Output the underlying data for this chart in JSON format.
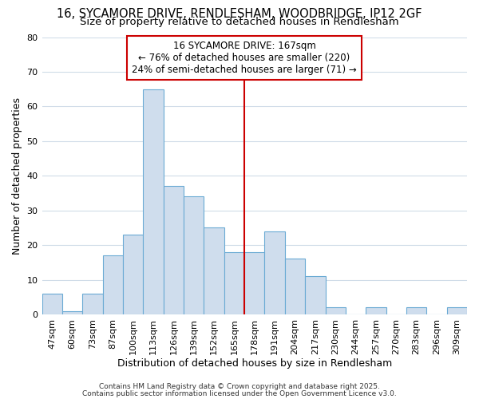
{
  "title1": "16, SYCAMORE DRIVE, RENDLESHAM, WOODBRIDGE, IP12 2GF",
  "title2": "Size of property relative to detached houses in Rendlesham",
  "xlabel": "Distribution of detached houses by size in Rendlesham",
  "ylabel": "Number of detached properties",
  "categories": [
    "47sqm",
    "60sqm",
    "73sqm",
    "87sqm",
    "100sqm",
    "113sqm",
    "126sqm",
    "139sqm",
    "152sqm",
    "165sqm",
    "178sqm",
    "191sqm",
    "204sqm",
    "217sqm",
    "230sqm",
    "244sqm",
    "257sqm",
    "270sqm",
    "283sqm",
    "296sqm",
    "309sqm"
  ],
  "values": [
    6,
    1,
    6,
    17,
    23,
    65,
    37,
    34,
    25,
    18,
    18,
    24,
    16,
    11,
    2,
    0,
    2,
    0,
    2,
    0,
    2
  ],
  "bar_color": "#cfdded",
  "bar_edge_color": "#6aaad4",
  "vline_x": 9.5,
  "vline_color": "#cc0000",
  "annotation_line1": "16 SYCAMORE DRIVE: 167sqm",
  "annotation_line2": "← 76% of detached houses are smaller (220)",
  "annotation_line3": "24% of semi-detached houses are larger (71) →",
  "annotation_box_color": "#ffffff",
  "annotation_box_edge": "#cc0000",
  "ylim": [
    0,
    80
  ],
  "yticks": [
    0,
    10,
    20,
    30,
    40,
    50,
    60,
    70,
    80
  ],
  "footer1": "Contains HM Land Registry data © Crown copyright and database right 2025.",
  "footer2": "Contains public sector information licensed under the Open Government Licence v3.0.",
  "background_color": "#ffffff",
  "grid_color": "#d0dce8",
  "title1_fontsize": 10.5,
  "title2_fontsize": 9.5,
  "xlabel_fontsize": 9,
  "ylabel_fontsize": 9,
  "tick_fontsize": 8,
  "annotation_fontsize": 8.5,
  "footer_fontsize": 6.5
}
